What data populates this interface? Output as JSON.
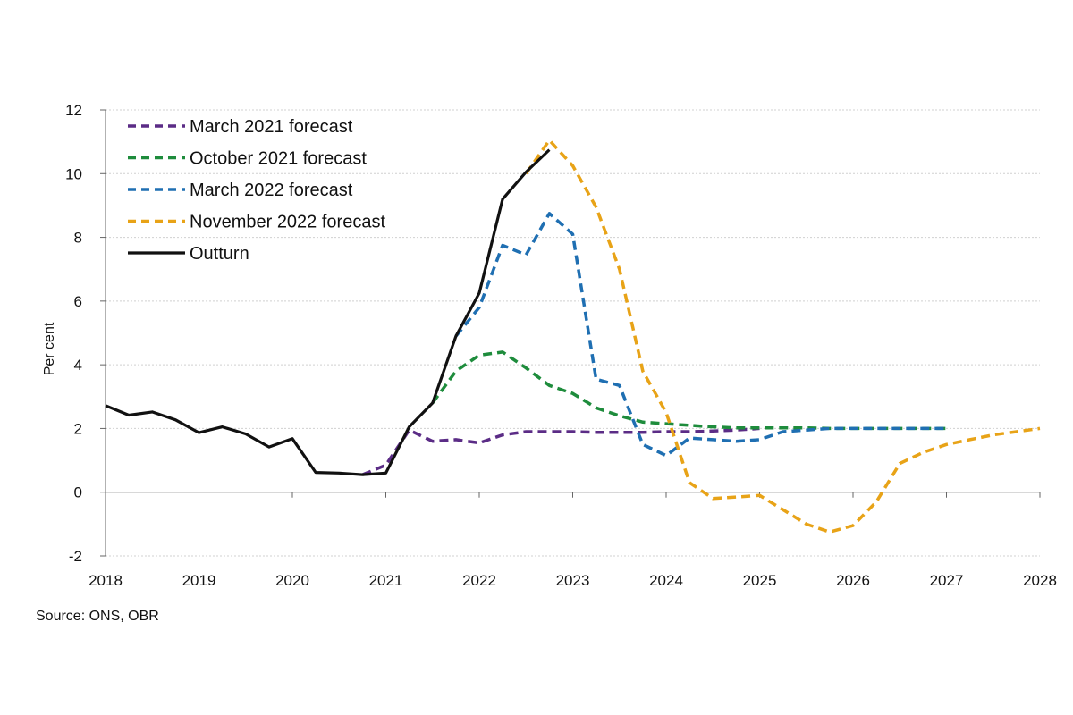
{
  "source": "Source: ONS, OBR",
  "chart_data": {
    "type": "line",
    "title": "",
    "xlabel": "",
    "ylabel": "Per cent",
    "xlim": [
      2018,
      2028
    ],
    "ylim": [
      -2,
      12
    ],
    "x_ticks": [
      "2018",
      "2019",
      "2020",
      "2021",
      "2022",
      "2023",
      "2024",
      "2025",
      "2026",
      "2027",
      "2028"
    ],
    "y_ticks": [
      "-2",
      "0",
      "2",
      "4",
      "6",
      "8",
      "10",
      "12"
    ],
    "grid": "horizontal",
    "legend_position": "top-left",
    "series": [
      {
        "name": "March 2021 forecast",
        "color": "#5b2c86",
        "dashed": true,
        "x": [
          2020.75,
          2021.0,
          2021.25,
          2021.5,
          2021.75,
          2022.0,
          2022.25,
          2022.5,
          2022.75,
          2023.0,
          2023.25,
          2023.5,
          2023.75,
          2024.0,
          2024.25,
          2024.5,
          2024.75,
          2025.0
        ],
        "y": [
          0.55,
          0.85,
          1.95,
          1.6,
          1.65,
          1.55,
          1.8,
          1.9,
          1.9,
          1.9,
          1.88,
          1.88,
          1.88,
          1.9,
          1.9,
          1.92,
          1.95,
          2.0
        ]
      },
      {
        "name": "October 2021 forecast",
        "color": "#1e8c3c",
        "dashed": true,
        "x": [
          2021.5,
          2021.75,
          2022.0,
          2022.25,
          2022.5,
          2022.75,
          2023.0,
          2023.25,
          2023.5,
          2023.75,
          2024.0,
          2024.25,
          2024.5,
          2024.75,
          2025.0,
          2025.25,
          2025.5,
          2025.75,
          2026.0,
          2026.25,
          2026.5,
          2026.75,
          2027.0
        ],
        "y": [
          2.8,
          3.8,
          4.3,
          4.4,
          3.9,
          3.35,
          3.1,
          2.65,
          2.4,
          2.2,
          2.15,
          2.1,
          2.05,
          2.02,
          2.02,
          2.02,
          2.02,
          2.0,
          2.0,
          2.0,
          2.0,
          2.0,
          2.0
        ]
      },
      {
        "name": "March 2022 forecast",
        "color": "#1f6fb2",
        "dashed": true,
        "x": [
          2021.75,
          2022.0,
          2022.25,
          2022.5,
          2022.75,
          2023.0,
          2023.25,
          2023.5,
          2023.75,
          2024.0,
          2024.25,
          2024.5,
          2024.75,
          2025.0,
          2025.25,
          2025.5,
          2025.75,
          2026.0,
          2026.25,
          2026.5,
          2026.75,
          2027.0
        ],
        "y": [
          4.9,
          5.8,
          7.75,
          7.45,
          8.75,
          8.1,
          3.55,
          3.35,
          1.5,
          1.15,
          1.7,
          1.65,
          1.6,
          1.65,
          1.9,
          1.95,
          2.0,
          2.0,
          2.0,
          2.0,
          2.0,
          2.0
        ]
      },
      {
        "name": "November 2022 forecast",
        "color": "#e8a317",
        "dashed": true,
        "x": [
          2022.5,
          2022.75,
          2023.0,
          2023.25,
          2023.5,
          2023.75,
          2024.0,
          2024.25,
          2024.5,
          2024.75,
          2025.0,
          2025.25,
          2025.5,
          2025.75,
          2026.0,
          2026.25,
          2026.5,
          2026.75,
          2027.0,
          2027.25,
          2027.5,
          2027.75,
          2028.0
        ],
        "y": [
          10.0,
          11.05,
          10.25,
          8.95,
          7.0,
          3.8,
          2.5,
          0.3,
          -0.2,
          -0.15,
          -0.1,
          -0.55,
          -1.0,
          -1.25,
          -1.05,
          -0.3,
          0.9,
          1.25,
          1.5,
          1.65,
          1.8,
          1.9,
          2.0
        ]
      },
      {
        "name": "Outturn",
        "color": "#111111",
        "dashed": false,
        "x": [
          2018.0,
          2018.25,
          2018.5,
          2018.75,
          2019.0,
          2019.25,
          2019.5,
          2019.75,
          2020.0,
          2020.25,
          2020.5,
          2020.75,
          2021.0,
          2021.25,
          2021.5,
          2021.75,
          2022.0,
          2022.25,
          2022.5,
          2022.75
        ],
        "y": [
          2.72,
          2.42,
          2.52,
          2.27,
          1.87,
          2.05,
          1.83,
          1.42,
          1.68,
          0.62,
          0.6,
          0.55,
          0.6,
          2.05,
          2.8,
          4.9,
          6.25,
          9.2,
          10.05,
          10.75
        ]
      }
    ]
  }
}
